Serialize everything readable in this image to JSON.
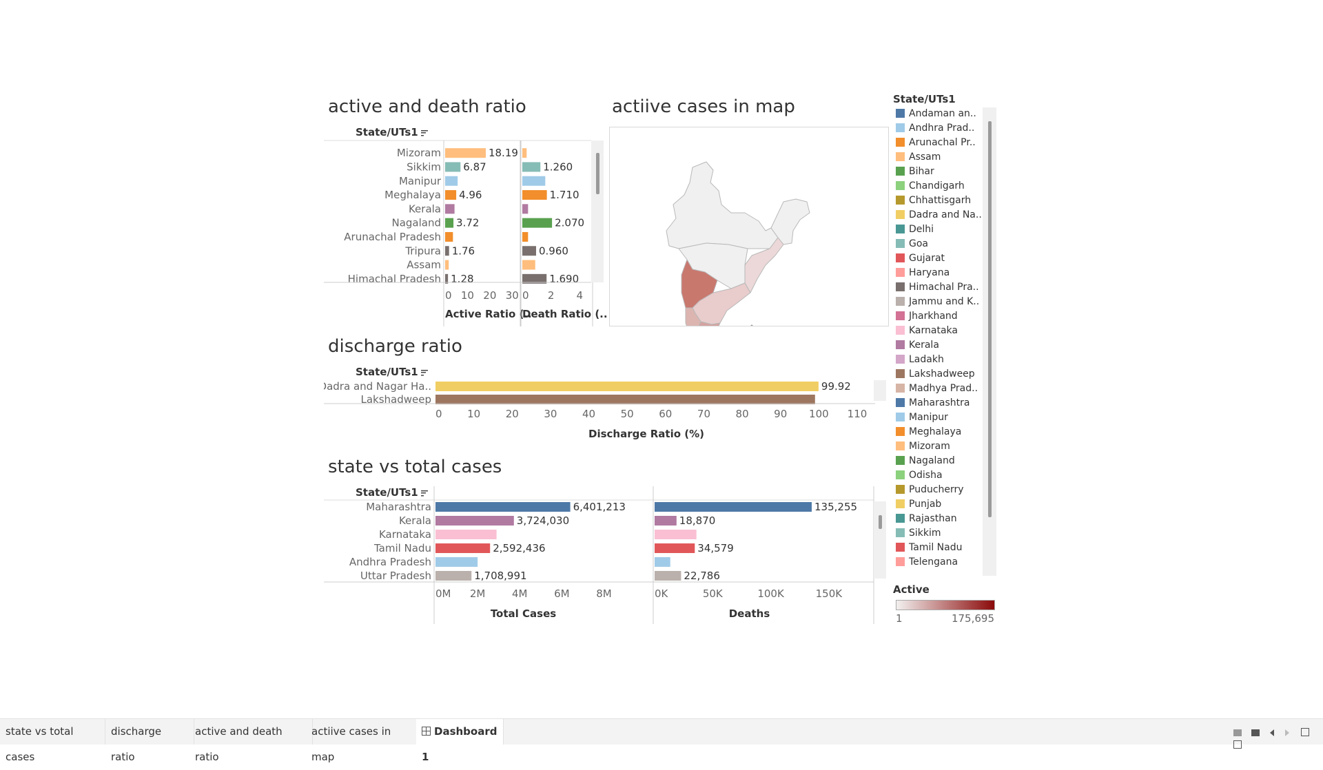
{
  "titles": {
    "active_death": "active and death ratio",
    "map": "actiive cases in map",
    "discharge": "discharge ratio",
    "total": "state vs total cases"
  },
  "state_header": "State/UTs1",
  "colors": {
    "Mizoram": "#ffbe7d",
    "Sikkim": "#86bcb6",
    "Manipur": "#a0cbe8",
    "Meghalaya": "#f28e2b",
    "Kerala": "#b07aa1",
    "Nagaland": "#59a14f",
    "Arunachal Pradesh": "#f28e2b",
    "Tripura": "#79706e",
    "Assam": "#ffbe7d",
    "Himachal Pradesh": "#79706e",
    "Dadra": "#f1ce63",
    "Lakshadweep": "#9d7660",
    "Maharashtra": "#4e79a7",
    "Karnataka": "#fabfd2",
    "Tamil Nadu": "#e15759",
    "Andhra Pradesh": "#a0cbe8",
    "Uttar Pradesh": "#bab0ac"
  },
  "chart_data": [
    {
      "type": "bar",
      "title": "active and death ratio",
      "categories": [
        "Mizoram",
        "Sikkim",
        "Manipur",
        "Meghalaya",
        "Kerala",
        "Nagaland",
        "Arunachal Pradesh",
        "Tripura",
        "Assam",
        "Himachal Pradesh"
      ],
      "series": [
        {
          "name": "Active Ratio (..",
          "values": [
            18.19,
            6.87,
            5.6,
            4.96,
            4.2,
            3.72,
            3.5,
            1.76,
            1.6,
            1.28
          ],
          "labels": [
            "18.19",
            "6.87",
            "",
            "4.96",
            "",
            "3.72",
            "",
            "1.76",
            "",
            "1.28"
          ],
          "ticks": [
            "0",
            "10",
            "20",
            "30"
          ],
          "xlim": [
            0,
            33
          ]
        },
        {
          "name": "Death Ratio (..",
          "values": [
            0.3,
            1.26,
            1.6,
            1.71,
            0.4,
            2.07,
            0.4,
            0.96,
            0.9,
            1.69
          ],
          "labels": [
            "",
            "1.260",
            "",
            "1.710",
            "",
            "2.070",
            "",
            "0.960",
            "",
            "1.690"
          ],
          "ticks": [
            "0",
            "2",
            "4"
          ],
          "xlim": [
            0,
            4.8
          ]
        }
      ]
    },
    {
      "type": "bar",
      "title": "discharge ratio",
      "xlabel": "Discharge Ratio (%)",
      "categories": [
        "Dadra and Nagar Ha..",
        "Lakshadweep"
      ],
      "values": [
        99.92,
        99.0
      ],
      "labels": [
        "99.92",
        ""
      ],
      "ticks": [
        "0",
        "10",
        "20",
        "30",
        "40",
        "50",
        "60",
        "70",
        "80",
        "90",
        "100",
        "110"
      ],
      "xlim": [
        0,
        110
      ]
    },
    {
      "type": "bar",
      "title": "state vs total cases",
      "categories": [
        "Maharashtra",
        "Kerala",
        "Karnataka",
        "Tamil Nadu",
        "Andhra Pradesh",
        "Uttar Pradesh"
      ],
      "series": [
        {
          "name": "Total Cases",
          "values": [
            6401213,
            3724030,
            2900000,
            2592436,
            2000000,
            1708991
          ],
          "labels": [
            "6,401,213",
            "3,724,030",
            "",
            "2,592,436",
            "",
            "1,708,991"
          ],
          "ticks": [
            "0M",
            "2M",
            "4M",
            "6M",
            "8M"
          ],
          "xlim": [
            0,
            9000000
          ]
        },
        {
          "name": "Deaths",
          "values": [
            135255,
            18870,
            36000,
            34579,
            13500,
            22786
          ],
          "labels": [
            "135,255",
            "18,870",
            "",
            "34,579",
            "",
            "22,786"
          ],
          "ticks": [
            "0K",
            "50K",
            "100K",
            "150K"
          ],
          "xlim": [
            0,
            175000
          ]
        }
      ]
    }
  ],
  "legend": {
    "title": "State/UTs1",
    "items": [
      {
        "label": "Andaman an..",
        "color": "#4e79a7"
      },
      {
        "label": "Andhra Prad..",
        "color": "#a0cbe8"
      },
      {
        "label": "Arunachal Pr..",
        "color": "#f28e2b"
      },
      {
        "label": "Assam",
        "color": "#ffbe7d"
      },
      {
        "label": "Bihar",
        "color": "#59a14f"
      },
      {
        "label": "Chandigarh",
        "color": "#8cd17d"
      },
      {
        "label": "Chhattisgarh",
        "color": "#b6992d"
      },
      {
        "label": "Dadra and Na..",
        "color": "#f1ce63"
      },
      {
        "label": "Delhi",
        "color": "#499894"
      },
      {
        "label": "Goa",
        "color": "#86bcb6"
      },
      {
        "label": "Gujarat",
        "color": "#e15759"
      },
      {
        "label": "Haryana",
        "color": "#ff9d9a"
      },
      {
        "label": "Himachal Pra..",
        "color": "#79706e"
      },
      {
        "label": "Jammu and K..",
        "color": "#bab0ac"
      },
      {
        "label": "Jharkhand",
        "color": "#d37295"
      },
      {
        "label": "Karnataka",
        "color": "#fabfd2"
      },
      {
        "label": "Kerala",
        "color": "#b07aa1"
      },
      {
        "label": "Ladakh",
        "color": "#d4a6c8"
      },
      {
        "label": "Lakshadweep",
        "color": "#9d7660"
      },
      {
        "label": "Madhya Prad..",
        "color": "#d7b5a6"
      },
      {
        "label": "Maharashtra",
        "color": "#4e79a7"
      },
      {
        "label": "Manipur",
        "color": "#a0cbe8"
      },
      {
        "label": "Meghalaya",
        "color": "#f28e2b"
      },
      {
        "label": "Mizoram",
        "color": "#ffbe7d"
      },
      {
        "label": "Nagaland",
        "color": "#59a14f"
      },
      {
        "label": "Odisha",
        "color": "#8cd17d"
      },
      {
        "label": "Puducherry",
        "color": "#b6992d"
      },
      {
        "label": "Punjab",
        "color": "#f1ce63"
      },
      {
        "label": "Rajasthan",
        "color": "#499894"
      },
      {
        "label": "Sikkim",
        "color": "#86bcb6"
      },
      {
        "label": "Tamil Nadu",
        "color": "#e15759"
      },
      {
        "label": "Telengana",
        "color": "#ff9d9a"
      }
    ]
  },
  "active_legend": {
    "title": "Active",
    "min": "1",
    "max": "175,695",
    "color_low": "#f2f0ef",
    "color_high": "#8b0a0a"
  },
  "tabs": [
    {
      "label": "state vs total cases"
    },
    {
      "label": "discharge ratio"
    },
    {
      "label": "active and death ratio"
    },
    {
      "label": "actiive cases in map"
    },
    {
      "label": "Dashboard 1"
    }
  ]
}
